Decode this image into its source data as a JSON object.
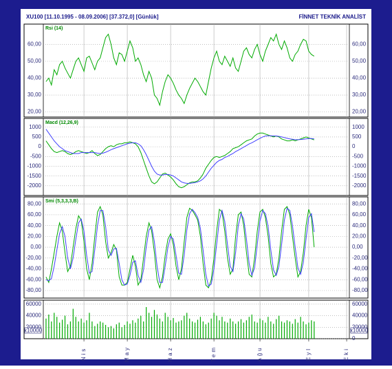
{
  "header": {
    "left": "XU100  [11.10.1995 - 08.09.2006]  [37.372,0]  [Günlük]",
    "right": "FİNNET TEKNİK ANALİST"
  },
  "chart_data": [
    {
      "type": "line",
      "label": "Rsi (14)",
      "ylim": [
        17,
        72
      ],
      "yticks": [
        {
          "value": 60,
          "label": "60,00"
        },
        {
          "value": 50,
          "label": "50,00"
        },
        {
          "value": 40,
          "label": "40,00"
        },
        {
          "value": 30,
          "label": "30,00"
        },
        {
          "value": 20,
          "label": "20,00"
        }
      ],
      "series": [
        {
          "color": "#00aa00",
          "values": [
            38,
            40,
            36,
            45,
            42,
            48,
            50,
            46,
            43,
            40,
            45,
            50,
            52,
            48,
            44,
            52,
            53,
            49,
            45,
            50,
            52,
            58,
            64,
            66,
            60,
            52,
            48,
            55,
            54,
            50,
            56,
            62,
            58,
            50,
            52,
            48,
            42,
            38,
            44,
            40,
            30,
            28,
            24,
            32,
            38,
            42,
            40,
            37,
            33,
            30,
            28,
            25,
            30,
            34,
            37,
            40,
            38,
            35,
            32,
            30,
            38,
            46,
            52,
            56,
            50,
            48,
            53,
            50,
            47,
            52,
            46,
            44,
            50,
            56,
            58,
            54,
            52,
            57,
            60,
            54,
            50,
            56,
            60,
            64,
            62,
            66,
            60,
            57,
            62,
            58,
            52,
            50,
            54,
            56,
            60,
            63,
            62,
            56,
            54,
            53
          ]
        }
      ]
    },
    {
      "type": "line",
      "label": "Macd (12,26,9)",
      "ylim": [
        -2500,
        1450
      ],
      "yticks": [
        1000,
        500,
        0,
        -500,
        -1000,
        -1500,
        -2000
      ],
      "series": [
        {
          "color": "#00aa00",
          "values": [
            300,
            100,
            -100,
            -250,
            -300,
            -250,
            -200,
            -250,
            -350,
            -400,
            -350,
            -250,
            -200,
            -250,
            -300,
            -350,
            -300,
            -200,
            -350,
            -450,
            -400,
            -250,
            -100,
            0,
            50,
            0,
            100,
            150,
            150,
            200,
            200,
            250,
            200,
            150,
            0,
            -300,
            -700,
            -1100,
            -1500,
            -1800,
            -1900,
            -1800,
            -1600,
            -1400,
            -1350,
            -1450,
            -1550,
            -1700,
            -1900,
            -2050,
            -2100,
            -2050,
            -1950,
            -1850,
            -1800,
            -1800,
            -1750,
            -1600,
            -1400,
            -1100,
            -900,
            -700,
            -550,
            -500,
            -550,
            -500,
            -450,
            -350,
            -250,
            -100,
            -50,
            0,
            100,
            200,
            300,
            350,
            400,
            550,
            650,
            700,
            700,
            650,
            600,
            550,
            500,
            550,
            500,
            400,
            350,
            300,
            300,
            350,
            300,
            350,
            400,
            450,
            500,
            450,
            400,
            350
          ]
        },
        {
          "color": "#4040ff",
          "values": [
            900,
            700,
            500,
            300,
            150,
            0,
            -100,
            -200,
            -250,
            -300,
            -350,
            -350,
            -350,
            -300,
            -300,
            -300,
            -300,
            -300,
            -300,
            -330,
            -350,
            -330,
            -280,
            -220,
            -150,
            -100,
            -50,
            0,
            50,
            100,
            150,
            180,
            200,
            200,
            150,
            50,
            -150,
            -400,
            -700,
            -1000,
            -1250,
            -1400,
            -1450,
            -1450,
            -1420,
            -1420,
            -1450,
            -1500,
            -1600,
            -1700,
            -1800,
            -1850,
            -1880,
            -1880,
            -1860,
            -1840,
            -1800,
            -1750,
            -1650,
            -1500,
            -1300,
            -1100,
            -950,
            -800,
            -700,
            -650,
            -550,
            -500,
            -420,
            -350,
            -250,
            -180,
            -100,
            -20,
            60,
            140,
            200,
            280,
            360,
            430,
            500,
            550,
            560,
            560,
            550,
            550,
            530,
            500,
            470,
            430,
            400,
            380,
            360,
            360,
            370,
            380,
            400,
            420,
            420,
            400
          ]
        }
      ]
    },
    {
      "type": "line",
      "label": "Smi (5,3,3,3,B)",
      "ylim": [
        -94,
        93
      ],
      "yticks": [
        {
          "value": 80,
          "label": "80,00"
        },
        {
          "value": 60,
          "label": "60,00"
        },
        {
          "value": 40,
          "label": "40,00"
        },
        {
          "value": 20,
          "label": "20,00"
        },
        {
          "value": 0,
          "label": "0,00"
        },
        {
          "value": -20,
          "label": "-20,00"
        },
        {
          "value": -40,
          "label": "-40,00"
        },
        {
          "value": -60,
          "label": "-60,00"
        },
        {
          "value": -80,
          "label": "-80,00"
        }
      ],
      "series": [
        {
          "color": "#00aa00",
          "values": [
            -55,
            -65,
            -40,
            -10,
            20,
            45,
            30,
            -10,
            -45,
            -35,
            0,
            35,
            58,
            50,
            10,
            -40,
            -60,
            -30,
            20,
            65,
            75,
            60,
            10,
            -20,
            -10,
            5,
            -5,
            -55,
            -70,
            -70,
            -65,
            -40,
            -15,
            -35,
            -70,
            -60,
            -20,
            20,
            45,
            30,
            -10,
            -60,
            -75,
            -55,
            -15,
            15,
            25,
            5,
            -35,
            -60,
            -40,
            10,
            55,
            72,
            68,
            60,
            50,
            20,
            -30,
            -70,
            -75,
            -60,
            -20,
            30,
            70,
            65,
            30,
            -20,
            -50,
            -40,
            20,
            60,
            65,
            40,
            -10,
            -50,
            -55,
            -20,
            30,
            65,
            70,
            55,
            20,
            -30,
            -55,
            -50,
            -20,
            30,
            70,
            75,
            60,
            20,
            -20,
            -55,
            -45,
            -10,
            40,
            70,
            55,
            0
          ]
        },
        {
          "color": "#4040ff",
          "values": [
            -60,
            -62,
            -58,
            -35,
            -5,
            25,
            38,
            20,
            -20,
            -40,
            -20,
            15,
            45,
            52,
            30,
            -15,
            -48,
            -45,
            -5,
            40,
            68,
            68,
            38,
            -5,
            -15,
            -3,
            -2,
            -30,
            -60,
            -70,
            -68,
            -52,
            -28,
            -25,
            -52,
            -65,
            -42,
            0,
            32,
            38,
            10,
            -35,
            -65,
            -65,
            -35,
            0,
            20,
            15,
            -15,
            -48,
            -50,
            -15,
            32,
            62,
            70,
            64,
            55,
            35,
            -5,
            -50,
            -72,
            -68,
            -40,
            5,
            50,
            68,
            48,
            5,
            -35,
            -45,
            -10,
            40,
            62,
            52,
            15,
            -30,
            -52,
            -38,
            5,
            48,
            68,
            62,
            38,
            -5,
            -42,
            -52,
            -35,
            5,
            50,
            72,
            68,
            40,
            0,
            -38,
            -50,
            -28,
            15,
            55,
            62,
            28
          ]
        }
      ]
    },
    {
      "type": "bar",
      "unit_label": "x10000",
      "color": "#00aa00",
      "ylim": [
        0,
        67000
      ],
      "yticks": [
        60000,
        40000,
        20000,
        0
      ],
      "values": [
        35000,
        42000,
        30000,
        45000,
        38000,
        28000,
        33000,
        40000,
        25000,
        30000,
        52000,
        38000,
        30000,
        35000,
        28000,
        32000,
        45000,
        30000,
        22000,
        26000,
        30000,
        28000,
        24000,
        20000,
        22000,
        18000,
        25000,
        28000,
        20000,
        24000,
        30000,
        26000,
        32000,
        28000,
        35000,
        40000,
        30000,
        55000,
        45000,
        38000,
        50000,
        42000,
        35000,
        30000,
        45000,
        38000,
        32000,
        36000,
        28000,
        30000,
        32000,
        40000,
        45000,
        35000,
        30000,
        28000,
        33000,
        38000,
        30000,
        25000,
        28000,
        35000,
        45000,
        40000,
        32000,
        38000,
        30000,
        28000,
        35000,
        30000,
        26000,
        30000,
        34000,
        28000,
        32000,
        38000,
        42000,
        30000,
        28000,
        35000,
        32000,
        28000,
        38000,
        30000,
        26000,
        34000,
        40000,
        30000,
        28000,
        32000,
        30000,
        26000,
        34000,
        28000,
        38000,
        30000,
        25000,
        28000,
        32000,
        30000
      ],
      "xlim": [
        -1,
        112
      ],
      "xticks": [
        {
          "value": 14,
          "label": "Nis"
        },
        {
          "value": 30,
          "label": "May"
        },
        {
          "value": 46,
          "label": "Haz"
        },
        {
          "value": 62,
          "label": "Tem"
        },
        {
          "value": 79,
          "label": "Ağu"
        },
        {
          "value": 97,
          "label": "Eyl"
        },
        {
          "value": 111,
          "label": "Eki"
        }
      ]
    }
  ]
}
